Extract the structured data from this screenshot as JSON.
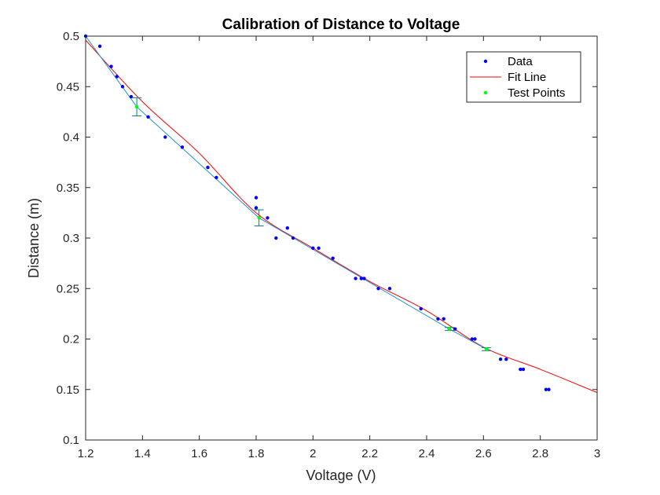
{
  "chart_data": {
    "type": "scatter",
    "title": "Calibration of Distance to Voltage",
    "xlabel": "Voltage (V)",
    "ylabel": "Distance (m)",
    "xlim": [
      1.2,
      3.0
    ],
    "ylim": [
      0.1,
      0.5
    ],
    "xticks": [
      1.2,
      1.4,
      1.6,
      1.8,
      2.0,
      2.2,
      2.4,
      2.6,
      2.8,
      3.0
    ],
    "xtick_labels": [
      "1.2",
      "1.4",
      "1.6",
      "1.8",
      "2",
      "2.2",
      "2.4",
      "2.6",
      "2.8",
      "3"
    ],
    "yticks": [
      0.1,
      0.15,
      0.2,
      0.25,
      0.3,
      0.35,
      0.4,
      0.45,
      0.5
    ],
    "ytick_labels": [
      "0.1",
      "0.15",
      "0.2",
      "0.25",
      "0.3",
      "0.35",
      "0.4",
      "0.45",
      "0.5"
    ],
    "grid": false,
    "legend_position": "top-right",
    "series": [
      {
        "name": "Data",
        "kind": "scatter",
        "color": "#0000ff",
        "x": [
          1.2,
          1.25,
          1.29,
          1.31,
          1.33,
          1.36,
          1.42,
          1.48,
          1.54,
          1.63,
          1.66,
          1.8,
          1.8,
          1.84,
          1.87,
          1.91,
          1.93,
          2.0,
          2.02,
          2.07,
          2.15,
          2.17,
          2.18,
          2.23,
          2.27,
          2.38,
          2.44,
          2.46,
          2.48,
          2.5,
          2.56,
          2.57,
          2.66,
          2.68,
          2.73,
          2.74,
          2.82,
          2.83
        ],
        "y": [
          0.5,
          0.49,
          0.47,
          0.46,
          0.45,
          0.44,
          0.42,
          0.4,
          0.39,
          0.37,
          0.36,
          0.34,
          0.33,
          0.32,
          0.3,
          0.31,
          0.3,
          0.29,
          0.29,
          0.28,
          0.26,
          0.26,
          0.26,
          0.25,
          0.25,
          0.23,
          0.22,
          0.22,
          0.21,
          0.21,
          0.2,
          0.2,
          0.18,
          0.18,
          0.17,
          0.17,
          0.15,
          0.15
        ]
      },
      {
        "name": "Fit Line",
        "kind": "line",
        "color": "#ff0000",
        "x": [
          1.2,
          1.4,
          1.6,
          1.8,
          2.0,
          2.2,
          2.4,
          2.6,
          2.8,
          3.0
        ],
        "y": [
          0.496,
          0.435,
          0.384,
          0.325,
          0.29,
          0.257,
          0.228,
          0.192,
          0.17,
          0.147
        ]
      },
      {
        "name": "",
        "kind": "line",
        "color": "#1f8fd1",
        "x": [
          1.2,
          1.38,
          1.81,
          2.48,
          2.61
        ],
        "y": [
          0.5,
          0.43,
          0.32,
          0.21,
          0.19
        ]
      },
      {
        "name": "Test Points",
        "kind": "scatter",
        "color": "#00ff00",
        "x": [
          1.38,
          1.81,
          2.48,
          2.61
        ],
        "y": [
          0.43,
          0.32,
          0.21,
          0.19
        ],
        "error": [
          0.009,
          0.008,
          0.0015,
          0.0015
        ],
        "error_color": "#008080"
      }
    ]
  }
}
